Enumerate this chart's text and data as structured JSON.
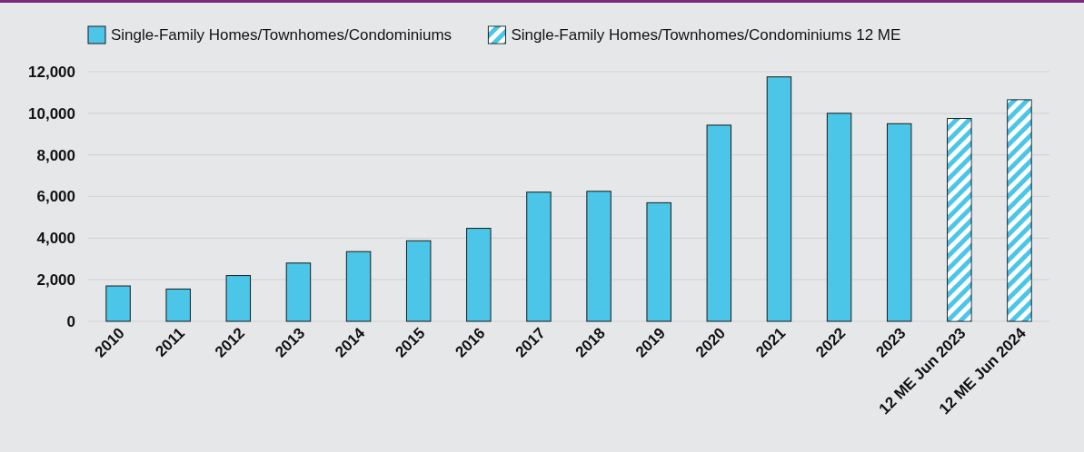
{
  "chart_data": {
    "type": "bar",
    "categories": [
      "2010",
      "2011",
      "2012",
      "2013",
      "2014",
      "2015",
      "2016",
      "2017",
      "2018",
      "2019",
      "2020",
      "2021",
      "2022",
      "2023",
      "12 ME Jun 2023",
      "12 ME Jun 2024"
    ],
    "series": [
      {
        "name": "Single-Family Homes/Townhomes/Condominiums",
        "color": "#4bc6e8",
        "values": [
          1700,
          1550,
          2200,
          2800,
          3350,
          3870,
          4470,
          6210,
          6250,
          5700,
          9430,
          11750,
          10000,
          9500,
          null,
          null
        ]
      },
      {
        "name": "Single-Family Homes/Townhomes/Condominiums 12 ME",
        "color": "#4bc6e8",
        "values": [
          null,
          null,
          null,
          null,
          null,
          null,
          null,
          null,
          null,
          null,
          null,
          null,
          null,
          null,
          9750,
          10650
        ]
      }
    ],
    "ylim": [
      0,
      12000
    ],
    "yticks": [
      {
        "value": 0,
        "label": "0"
      },
      {
        "value": 2000,
        "label": "2,000"
      },
      {
        "value": 4000,
        "label": "4,000"
      },
      {
        "value": 6000,
        "label": "6,000"
      },
      {
        "value": 8000,
        "label": "8,000"
      },
      {
        "value": 10000,
        "label": "10,000"
      },
      {
        "value": 12000,
        "label": "12,000"
      }
    ],
    "grid": "y",
    "legend": "top"
  }
}
